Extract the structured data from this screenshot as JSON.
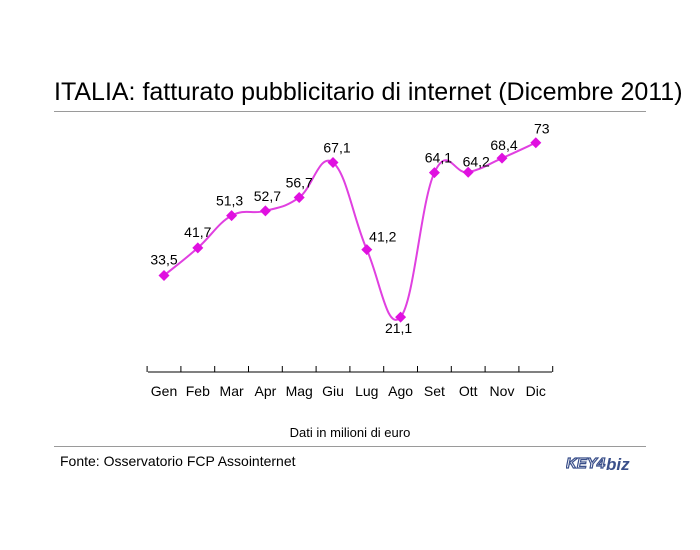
{
  "title": "ITALIA: fatturato pubblicitario di internet (Dicembre 2011)",
  "caption": "Dati in milioni di euro",
  "source": "Fonte: Osservatorio FCP Assointernet",
  "logo": {
    "part1": "KEY4",
    "part2": "biz"
  },
  "colors": {
    "series": "#e040e0",
    "marker": "#e010e0",
    "axis": "#000000",
    "rule": "#9a9a9a"
  },
  "chart_data": {
    "type": "line",
    "categories": [
      "Gen",
      "Feb",
      "Mar",
      "Apr",
      "Mag",
      "Giu",
      "Lug",
      "Ago",
      "Set",
      "Ott",
      "Nov",
      "Dic"
    ],
    "values": [
      33.5,
      41.7,
      51.3,
      52.7,
      56.7,
      67.1,
      41.2,
      21.1,
      64.1,
      64.2,
      68.4,
      73
    ],
    "value_labels": [
      "33,5",
      "41,7",
      "51,3",
      "52,7",
      "56,7",
      "67,1",
      "41,2",
      "21,1",
      "64,1",
      "64,2",
      "68,4",
      "73"
    ],
    "xlabel": "Dati in milioni di euro",
    "grid": false,
    "legend": "none"
  }
}
